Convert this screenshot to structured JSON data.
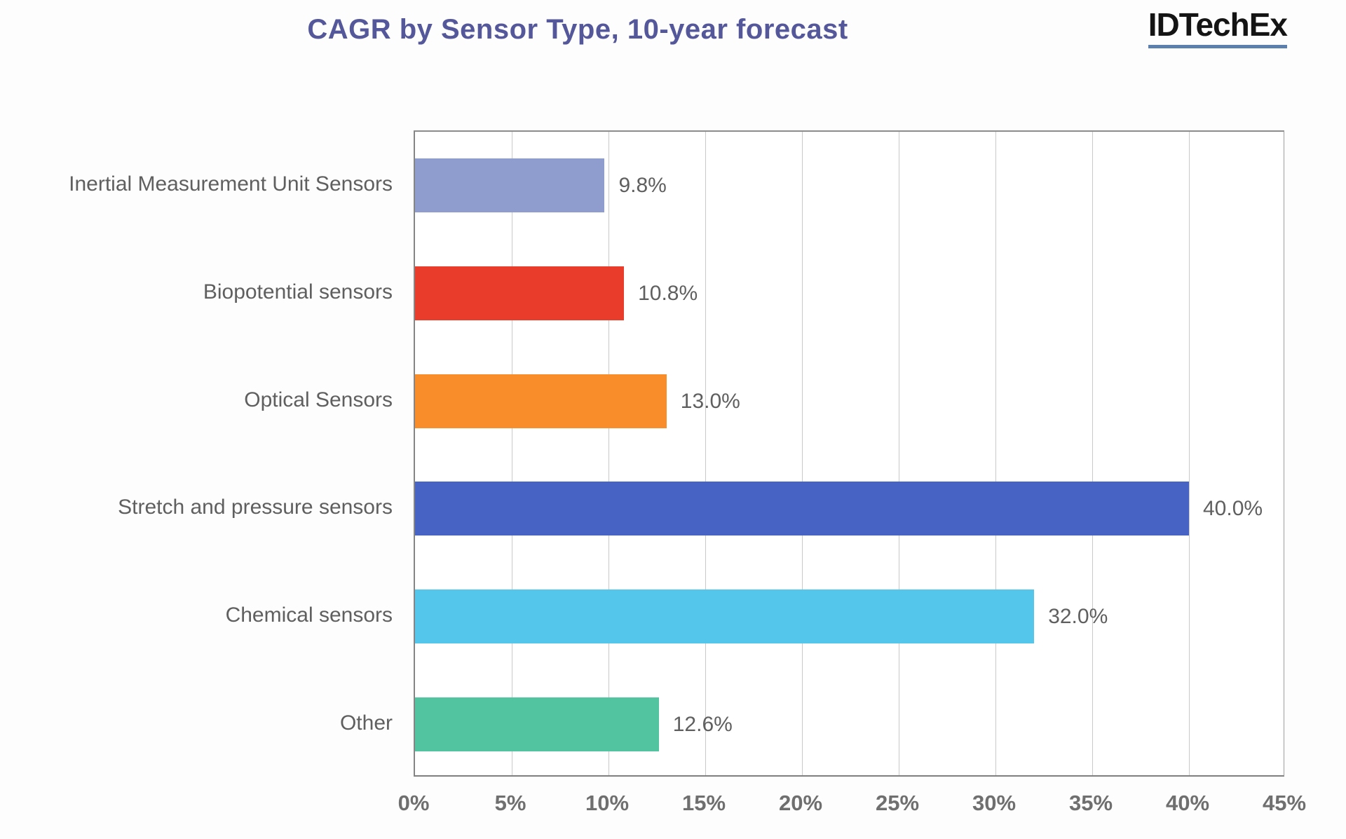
{
  "header": {
    "title": "CAGR by Sensor Type, 10-year forecast",
    "logo_text": "IDTechEx"
  },
  "chart_data": {
    "type": "bar",
    "orientation": "horizontal",
    "title": "CAGR by Sensor Type, 10-year forecast",
    "categories": [
      "Inertial Measurement Unit Sensors",
      "Biopotential sensors",
      "Optical Sensors",
      "Stretch and pressure sensors",
      "Chemical sensors",
      "Other"
    ],
    "values": [
      9.8,
      10.8,
      13.0,
      40.0,
      32.0,
      12.6
    ],
    "value_labels": [
      "9.8%",
      "10.8%",
      "13.0%",
      "40.0%",
      "32.0%",
      "12.6%"
    ],
    "bar_colors": [
      "#8e9dce",
      "#e93c2b",
      "#f88d2a",
      "#4763c4",
      "#55c6eb",
      "#52c5a0"
    ],
    "xlabel": "",
    "ylabel": "",
    "xlim": [
      0,
      45
    ],
    "x_tick_step": 5,
    "x_tick_labels": [
      "0%",
      "5%",
      "10%",
      "15%",
      "20%",
      "25%",
      "30%",
      "35%",
      "40%",
      "45%"
    ],
    "grid": true,
    "legend_position": "none"
  },
  "colors": {
    "title": "#54589a",
    "label_gray": "#5f5f5f",
    "gridline": "#c9c9c9",
    "axis": "#7f7f7f",
    "logo_underline": "#5b80ad",
    "logo_text": "#141414",
    "plot_background": "#ffffff"
  }
}
